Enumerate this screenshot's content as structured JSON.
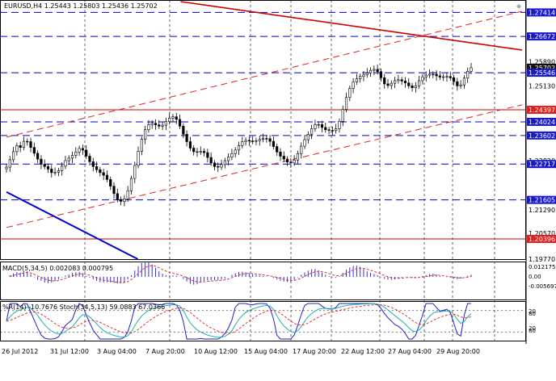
{
  "window": {
    "symbol_header": "EURUSD,H4  1.25443 1.25803 1.25436 1.25702",
    "corner_marker": "◆"
  },
  "colors": {
    "background": "#ffffff",
    "candle": "#000000",
    "blue_line": "#0000cc",
    "red_line": "#cc0000",
    "dashed_red": "#dd2222",
    "macd_hist": "#3333cc",
    "macd_signal": "#dd2222",
    "wpr": "#1f1fd0",
    "stoch_main": "#20b2aa",
    "stoch_signal": "#dd2222",
    "red_label_bg": "#e21d1d",
    "blue_label_bg": "#1a1acc",
    "price_label_bg": "#111111"
  },
  "price_axis": {
    "right_labels": [
      {
        "text": "1.27414",
        "style": "blue"
      },
      {
        "text": "1.26672",
        "style": "blue"
      },
      {
        "text": "1.25890",
        "style": "plain"
      },
      {
        "text": "1.25702",
        "style": "current"
      },
      {
        "text": "1.25546",
        "style": "blue"
      },
      {
        "text": "1.25130",
        "style": "plain"
      },
      {
        "text": "1.24397",
        "style": "red"
      },
      {
        "text": "1.24024",
        "style": "blue"
      },
      {
        "text": "1.23602",
        "style": "blue"
      },
      {
        "text": "1.22820",
        "style": "plain"
      },
      {
        "text": "1.22717",
        "style": "blue"
      },
      {
        "text": "1.21605",
        "style": "blue"
      },
      {
        "text": "1.21290",
        "style": "plain"
      },
      {
        "text": "1.20570",
        "style": "plain"
      },
      {
        "text": "1.20396",
        "style": "red"
      },
      {
        "text": "1.19770",
        "style": "plain"
      }
    ]
  },
  "macd_panel": {
    "title": "MACD(5,34,5) 0.002083 0.000795",
    "axis_labels": [
      "0.012175",
      "0.00",
      "-0.005697"
    ]
  },
  "oscillator_panel": {
    "title": "%R(14) -10.7676  Stoch(34,5,13) 59.0883 67.0366",
    "axis_labels": [
      "20",
      "80",
      "20",
      "80"
    ]
  },
  "time_axis": {
    "labels": [
      "26 Jul 2012",
      "31 Jul 12:00",
      "3 Aug 04:00",
      "7 Aug 20:00",
      "10 Aug 12:00",
      "15 Aug 04:00",
      "17 Aug 20:00",
      "22 Aug 12:00",
      "27 Aug 04:00",
      "29 Aug 20:00"
    ]
  },
  "chart_data": {
    "type": "candlestick",
    "instrument": "EURUSD",
    "timeframe": "H4",
    "current_ohlc": {
      "open": 1.25443,
      "high": 1.25803,
      "low": 1.25436,
      "close": 1.25702
    },
    "ylim": [
      1.1977,
      1.2775
    ],
    "horizontal_levels": [
      {
        "value": 1.27414,
        "style": "blue-dashed"
      },
      {
        "value": 1.26672,
        "style": "blue-dashed"
      },
      {
        "value": 1.25546,
        "style": "blue-dashed"
      },
      {
        "value": 1.24397,
        "style": "red-solid"
      },
      {
        "value": 1.24024,
        "style": "blue-dashed"
      },
      {
        "value": 1.23602,
        "style": "blue-dashed"
      },
      {
        "value": 1.22717,
        "style": "blue-dashed"
      },
      {
        "value": 1.21605,
        "style": "blue-dashed"
      },
      {
        "value": 1.20396,
        "style": "red-solid"
      }
    ],
    "trendlines": [
      {
        "style": "red-solid",
        "from": {
          "bar": 53,
          "price": 1.2775
        },
        "to": {
          "bar": 157,
          "price": 1.2625
        }
      },
      {
        "style": "red-dashed",
        "from": {
          "bar": 0,
          "price": 1.2355
        },
        "to": {
          "bar": 157,
          "price": 1.2745
        }
      },
      {
        "style": "red-dashed",
        "from": {
          "bar": 0,
          "price": 1.2075
        },
        "to": {
          "bar": 157,
          "price": 1.2455
        }
      },
      {
        "style": "blue-solid",
        "from": {
          "bar": 0,
          "price": 1.2185
        },
        "to": {
          "bar": 40,
          "price": 1.1977
        }
      }
    ],
    "close_series": [
      1.2262,
      1.2285,
      1.231,
      1.2329,
      1.2323,
      1.2342,
      1.2341,
      1.2323,
      1.2305,
      1.2287,
      1.2271,
      1.2264,
      1.2256,
      1.2245,
      1.2246,
      1.2251,
      1.2265,
      1.2282,
      1.229,
      1.2298,
      1.2309,
      1.232,
      1.2315,
      1.2296,
      1.2279,
      1.2264,
      1.2254,
      1.2245,
      1.2237,
      1.2224,
      1.2203,
      1.218,
      1.2162,
      1.2156,
      1.2164,
      1.2189,
      1.2227,
      1.2267,
      1.2311,
      1.2348,
      1.2378,
      1.2393,
      1.2398,
      1.2393,
      1.2389,
      1.2392,
      1.2403,
      1.2414,
      1.2418,
      1.241,
      1.2389,
      1.2364,
      1.2341,
      1.2321,
      1.231,
      1.2309,
      1.2311,
      1.2307,
      1.2292,
      1.2275,
      1.2264,
      1.2262,
      1.227,
      1.2282,
      1.2293,
      1.2304,
      1.2315,
      1.2329,
      1.2341,
      1.2345,
      1.2343,
      1.2342,
      1.2344,
      1.2348,
      1.2351,
      1.235,
      1.2342,
      1.2326,
      1.2309,
      1.2296,
      1.2287,
      1.2278,
      1.2275,
      1.2284,
      1.2304,
      1.2327,
      1.2347,
      1.2364,
      1.2381,
      1.2394,
      1.2394,
      1.2385,
      1.2378,
      1.2376,
      1.2375,
      1.2381,
      1.2404,
      1.2441,
      1.2478,
      1.2506,
      1.2526,
      1.2536,
      1.2543,
      1.2548,
      1.2554,
      1.2562,
      1.2565,
      1.2558,
      1.2539,
      1.252,
      1.2515,
      1.2522,
      1.253,
      1.2533,
      1.2529,
      1.2523,
      1.2514,
      1.2508,
      1.2514,
      1.253,
      1.2542,
      1.2547,
      1.255,
      1.255,
      1.2545,
      1.2541,
      1.2542,
      1.2543,
      1.2539,
      1.2527,
      1.2514,
      1.2517,
      1.2538,
      1.2559,
      1.257
    ]
  }
}
